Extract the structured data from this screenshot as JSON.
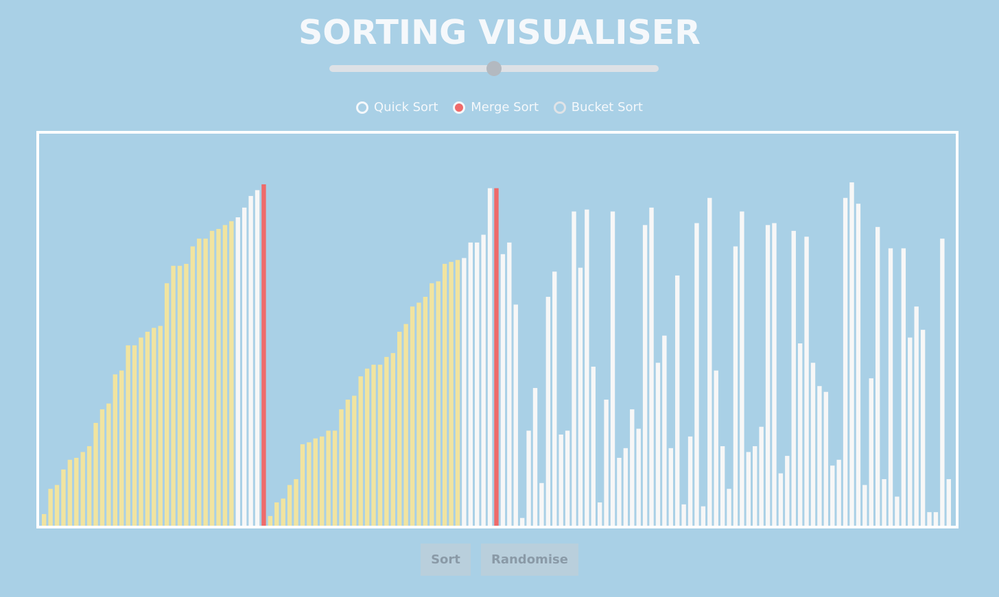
{
  "title": "SORTING VISUALISER",
  "speed_slider": {
    "value": 0.5
  },
  "algorithms": [
    {
      "label": "Quick Sort",
      "selected": false
    },
    {
      "label": "Merge Sort",
      "selected": true
    },
    {
      "label": "Bucket Sort",
      "selected": false
    }
  ],
  "buttons": {
    "sort": "Sort",
    "randomise": "Randomise"
  },
  "colors": {
    "background": "#a9d0e6",
    "sorted": "#f1e4a0",
    "unsorted": "#f7f7f7",
    "active": "#ef6a6a",
    "frame": "#ffffff"
  },
  "chart_data": {
    "type": "bar",
    "ylim": [
      0,
      100
    ],
    "bars": [
      {
        "v": 3,
        "s": "sorted"
      },
      {
        "v": 9.5,
        "s": "sorted"
      },
      {
        "v": 10.5,
        "s": "sorted"
      },
      {
        "v": 14.5,
        "s": "sorted"
      },
      {
        "v": 17,
        "s": "sorted"
      },
      {
        "v": 17.5,
        "s": "sorted"
      },
      {
        "v": 19,
        "s": "sorted"
      },
      {
        "v": 20.5,
        "s": "sorted"
      },
      {
        "v": 26.5,
        "s": "sorted"
      },
      {
        "v": 30,
        "s": "sorted"
      },
      {
        "v": 31.5,
        "s": "sorted"
      },
      {
        "v": 39,
        "s": "sorted"
      },
      {
        "v": 40,
        "s": "sorted"
      },
      {
        "v": 46.5,
        "s": "sorted"
      },
      {
        "v": 46.5,
        "s": "sorted"
      },
      {
        "v": 48.5,
        "s": "sorted"
      },
      {
        "v": 50,
        "s": "sorted"
      },
      {
        "v": 51,
        "s": "sorted"
      },
      {
        "v": 51.5,
        "s": "sorted"
      },
      {
        "v": 62.5,
        "s": "sorted"
      },
      {
        "v": 67,
        "s": "sorted"
      },
      {
        "v": 67,
        "s": "sorted"
      },
      {
        "v": 67.5,
        "s": "sorted"
      },
      {
        "v": 72,
        "s": "sorted"
      },
      {
        "v": 74,
        "s": "sorted"
      },
      {
        "v": 74,
        "s": "sorted"
      },
      {
        "v": 76,
        "s": "sorted"
      },
      {
        "v": 76.5,
        "s": "sorted"
      },
      {
        "v": 77.5,
        "s": "sorted"
      },
      {
        "v": 78.5,
        "s": "sorted"
      },
      {
        "v": 79.5,
        "s": "unsorted"
      },
      {
        "v": 82,
        "s": "unsorted"
      },
      {
        "v": 85,
        "s": "unsorted"
      },
      {
        "v": 86.5,
        "s": "unsorted"
      },
      {
        "v": 88,
        "s": "active"
      },
      {
        "v": 2.5,
        "s": "sorted"
      },
      {
        "v": 6,
        "s": "sorted"
      },
      {
        "v": 7,
        "s": "sorted"
      },
      {
        "v": 10.5,
        "s": "sorted"
      },
      {
        "v": 12,
        "s": "sorted"
      },
      {
        "v": 21,
        "s": "sorted"
      },
      {
        "v": 21.5,
        "s": "sorted"
      },
      {
        "v": 22.5,
        "s": "sorted"
      },
      {
        "v": 23,
        "s": "sorted"
      },
      {
        "v": 24.5,
        "s": "sorted"
      },
      {
        "v": 24.5,
        "s": "sorted"
      },
      {
        "v": 30,
        "s": "sorted"
      },
      {
        "v": 32.5,
        "s": "sorted"
      },
      {
        "v": 33.5,
        "s": "sorted"
      },
      {
        "v": 38.5,
        "s": "sorted"
      },
      {
        "v": 40.5,
        "s": "sorted"
      },
      {
        "v": 41.5,
        "s": "sorted"
      },
      {
        "v": 41.5,
        "s": "sorted"
      },
      {
        "v": 43.5,
        "s": "sorted"
      },
      {
        "v": 44.5,
        "s": "sorted"
      },
      {
        "v": 50,
        "s": "sorted"
      },
      {
        "v": 52,
        "s": "sorted"
      },
      {
        "v": 56.5,
        "s": "sorted"
      },
      {
        "v": 57.5,
        "s": "sorted"
      },
      {
        "v": 59,
        "s": "sorted"
      },
      {
        "v": 62.5,
        "s": "sorted"
      },
      {
        "v": 63,
        "s": "sorted"
      },
      {
        "v": 67.5,
        "s": "sorted"
      },
      {
        "v": 68,
        "s": "sorted"
      },
      {
        "v": 68.5,
        "s": "sorted"
      },
      {
        "v": 69,
        "s": "unsorted"
      },
      {
        "v": 73,
        "s": "unsorted"
      },
      {
        "v": 73,
        "s": "unsorted"
      },
      {
        "v": 75,
        "s": "unsorted"
      },
      {
        "v": 87,
        "s": "unsorted"
      },
      {
        "v": 87,
        "s": "active"
      },
      {
        "v": 70,
        "s": "unsorted"
      },
      {
        "v": 73,
        "s": "unsorted"
      },
      {
        "v": 57,
        "s": "unsorted"
      },
      {
        "v": 2,
        "s": "unsorted"
      },
      {
        "v": 24.5,
        "s": "unsorted"
      },
      {
        "v": 35.5,
        "s": "unsorted"
      },
      {
        "v": 11,
        "s": "unsorted"
      },
      {
        "v": 59,
        "s": "unsorted"
      },
      {
        "v": 65.5,
        "s": "unsorted"
      },
      {
        "v": 23.5,
        "s": "unsorted"
      },
      {
        "v": 24.5,
        "s": "unsorted"
      },
      {
        "v": 81,
        "s": "unsorted"
      },
      {
        "v": 66.5,
        "s": "unsorted"
      },
      {
        "v": 81.5,
        "s": "unsorted"
      },
      {
        "v": 41,
        "s": "unsorted"
      },
      {
        "v": 6,
        "s": "unsorted"
      },
      {
        "v": 32.5,
        "s": "unsorted"
      },
      {
        "v": 81,
        "s": "unsorted"
      },
      {
        "v": 17.5,
        "s": "unsorted"
      },
      {
        "v": 20,
        "s": "unsorted"
      },
      {
        "v": 30,
        "s": "unsorted"
      },
      {
        "v": 25,
        "s": "unsorted"
      },
      {
        "v": 77.5,
        "s": "unsorted"
      },
      {
        "v": 82,
        "s": "unsorted"
      },
      {
        "v": 42,
        "s": "unsorted"
      },
      {
        "v": 49,
        "s": "unsorted"
      },
      {
        "v": 20,
        "s": "unsorted"
      },
      {
        "v": 64.5,
        "s": "unsorted"
      },
      {
        "v": 5.5,
        "s": "unsorted"
      },
      {
        "v": 23,
        "s": "unsorted"
      },
      {
        "v": 78,
        "s": "unsorted"
      },
      {
        "v": 5,
        "s": "unsorted"
      },
      {
        "v": 84.5,
        "s": "unsorted"
      },
      {
        "v": 40,
        "s": "unsorted"
      },
      {
        "v": 20.5,
        "s": "unsorted"
      },
      {
        "v": 9.5,
        "s": "unsorted"
      },
      {
        "v": 72,
        "s": "unsorted"
      },
      {
        "v": 81,
        "s": "unsorted"
      },
      {
        "v": 19,
        "s": "unsorted"
      },
      {
        "v": 20.5,
        "s": "unsorted"
      },
      {
        "v": 25.5,
        "s": "unsorted"
      },
      {
        "v": 77.5,
        "s": "unsorted"
      },
      {
        "v": 78,
        "s": "unsorted"
      },
      {
        "v": 13.5,
        "s": "unsorted"
      },
      {
        "v": 18,
        "s": "unsorted"
      },
      {
        "v": 76,
        "s": "unsorted"
      },
      {
        "v": 47,
        "s": "unsorted"
      },
      {
        "v": 74.5,
        "s": "unsorted"
      },
      {
        "v": 42,
        "s": "unsorted"
      },
      {
        "v": 36,
        "s": "unsorted"
      },
      {
        "v": 34.5,
        "s": "unsorted"
      },
      {
        "v": 15.5,
        "s": "unsorted"
      },
      {
        "v": 17,
        "s": "unsorted"
      },
      {
        "v": 84.5,
        "s": "unsorted"
      },
      {
        "v": 88.5,
        "s": "unsorted"
      },
      {
        "v": 83,
        "s": "unsorted"
      },
      {
        "v": 10.5,
        "s": "unsorted"
      },
      {
        "v": 38,
        "s": "unsorted"
      },
      {
        "v": 77,
        "s": "unsorted"
      },
      {
        "v": 12,
        "s": "unsorted"
      },
      {
        "v": 71.5,
        "s": "unsorted"
      },
      {
        "v": 7.5,
        "s": "unsorted"
      },
      {
        "v": 71.5,
        "s": "unsorted"
      },
      {
        "v": 48.5,
        "s": "unsorted"
      },
      {
        "v": 56.5,
        "s": "unsorted"
      },
      {
        "v": 50.5,
        "s": "unsorted"
      },
      {
        "v": 3.5,
        "s": "unsorted"
      },
      {
        "v": 3.5,
        "s": "unsorted"
      },
      {
        "v": 74,
        "s": "unsorted"
      },
      {
        "v": 12,
        "s": "unsorted"
      }
    ]
  }
}
